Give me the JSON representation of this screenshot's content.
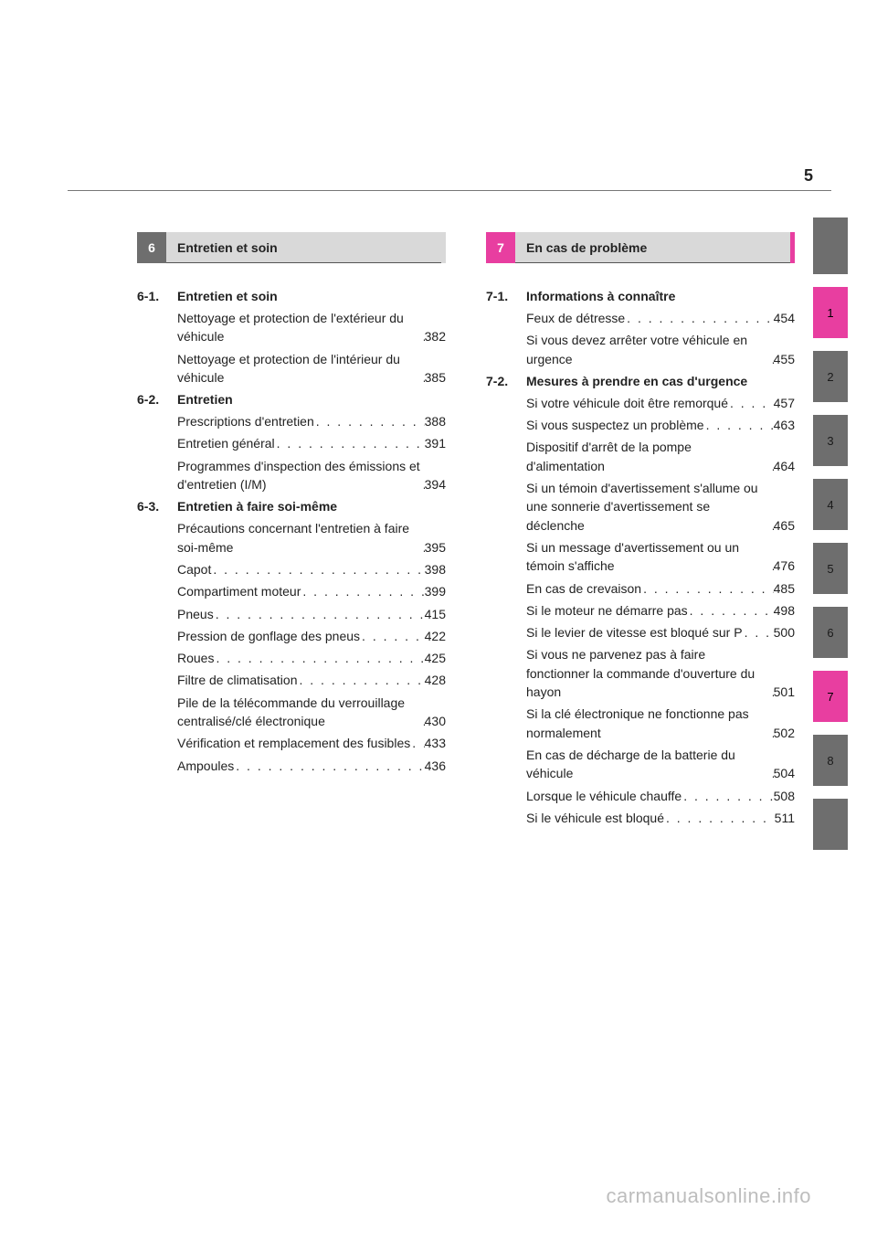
{
  "page_number": "5",
  "watermark": "carmanualsonline.info",
  "tabs": {
    "items": [
      {
        "label": "",
        "bg": "#6e6e6e"
      },
      {
        "label": "1",
        "bg": "#e83ea0"
      },
      {
        "label": "2",
        "bg": "#6e6e6e"
      },
      {
        "label": "3",
        "bg": "#6e6e6e"
      },
      {
        "label": "4",
        "bg": "#6e6e6e"
      },
      {
        "label": "5",
        "bg": "#6e6e6e"
      },
      {
        "label": "6",
        "bg": "#6e6e6e"
      },
      {
        "label": "7",
        "bg": "#e83ea0"
      },
      {
        "label": "8",
        "bg": "#6e6e6e"
      },
      {
        "label": "",
        "bg": "#6e6e6e"
      }
    ]
  },
  "chapter6": {
    "num": "6",
    "num_bg": "#6e6e6e",
    "title": "Entretien et soin",
    "title_bg": "#d9d9d9",
    "accent": "#d9d9d9",
    "sections": [
      {
        "num": "6-1.",
        "title": "Entretien et soin",
        "entries": [
          {
            "label": "Nettoyage et protection de l'extérieur du véhicule",
            "page": "382"
          },
          {
            "label": "Nettoyage et protection de l'intérieur du véhicule",
            "page": "385"
          }
        ]
      },
      {
        "num": "6-2.",
        "title": "Entretien",
        "entries": [
          {
            "label": "Prescriptions d'entretien",
            "page": "388"
          },
          {
            "label": "Entretien général",
            "page": "391"
          },
          {
            "label": "Programmes d'inspection des émissions et d'entretien (I/M)",
            "page": "394"
          }
        ]
      },
      {
        "num": "6-3.",
        "title": "Entretien à faire soi-même",
        "entries": [
          {
            "label": "Précautions concernant l'entretien à faire soi-même",
            "page": "395"
          },
          {
            "label": "Capot",
            "page": "398"
          },
          {
            "label": "Compartiment moteur",
            "page": "399"
          },
          {
            "label": "Pneus",
            "page": "415"
          },
          {
            "label": "Pression de gonflage des pneus",
            "page": "422"
          },
          {
            "label": "Roues",
            "page": "425"
          },
          {
            "label": "Filtre de climatisation",
            "page": "428"
          },
          {
            "label": "Pile de la télécommande du verrouillage centralisé/clé électronique",
            "page": "430"
          },
          {
            "label": "Vérification et remplacement des fusibles",
            "page": "433"
          },
          {
            "label": "Ampoules",
            "page": "436"
          }
        ]
      }
    ]
  },
  "chapter7": {
    "num": "7",
    "num_bg": "#e83ea0",
    "title": "En cas de problème",
    "title_bg": "#d9d9d9",
    "accent": "#e83ea0",
    "sections": [
      {
        "num": "7-1.",
        "title": "Informations à connaître",
        "entries": [
          {
            "label": "Feux de détresse",
            "page": "454"
          },
          {
            "label": "Si vous devez arrêter votre véhicule en urgence",
            "page": "455"
          }
        ]
      },
      {
        "num": "7-2.",
        "title": "Mesures à prendre en cas d'urgence",
        "entries": [
          {
            "label": "Si votre véhicule doit être remorqué",
            "page": "457"
          },
          {
            "label": "Si vous suspectez un problème",
            "page": "463"
          },
          {
            "label": "Dispositif d'arrêt de la pompe d'alimentation",
            "page": "464"
          },
          {
            "label": "Si un témoin d'avertissement s'allume ou une sonnerie d'avertissement se déclenche",
            "page": "465"
          },
          {
            "label": "Si un message d'avertissement ou un témoin s'affiche",
            "page": "476"
          },
          {
            "label": "En cas de crevaison",
            "page": "485"
          },
          {
            "label": "Si le moteur ne démarre pas",
            "page": "498"
          },
          {
            "label": "Si le levier de vitesse est bloqué sur P",
            "page": "500"
          },
          {
            "label": "Si vous ne parvenez pas à faire fonctionner la commande d'ouverture du hayon",
            "page": "501"
          },
          {
            "label": "Si la clé électronique ne fonctionne pas normalement",
            "page": "502"
          },
          {
            "label": "En cas de décharge de la batterie du véhicule",
            "page": "504"
          },
          {
            "label": "Lorsque le véhicule chauffe",
            "page": "508"
          },
          {
            "label": "Si le véhicule est bloqué",
            "page": "511"
          }
        ]
      }
    ]
  }
}
